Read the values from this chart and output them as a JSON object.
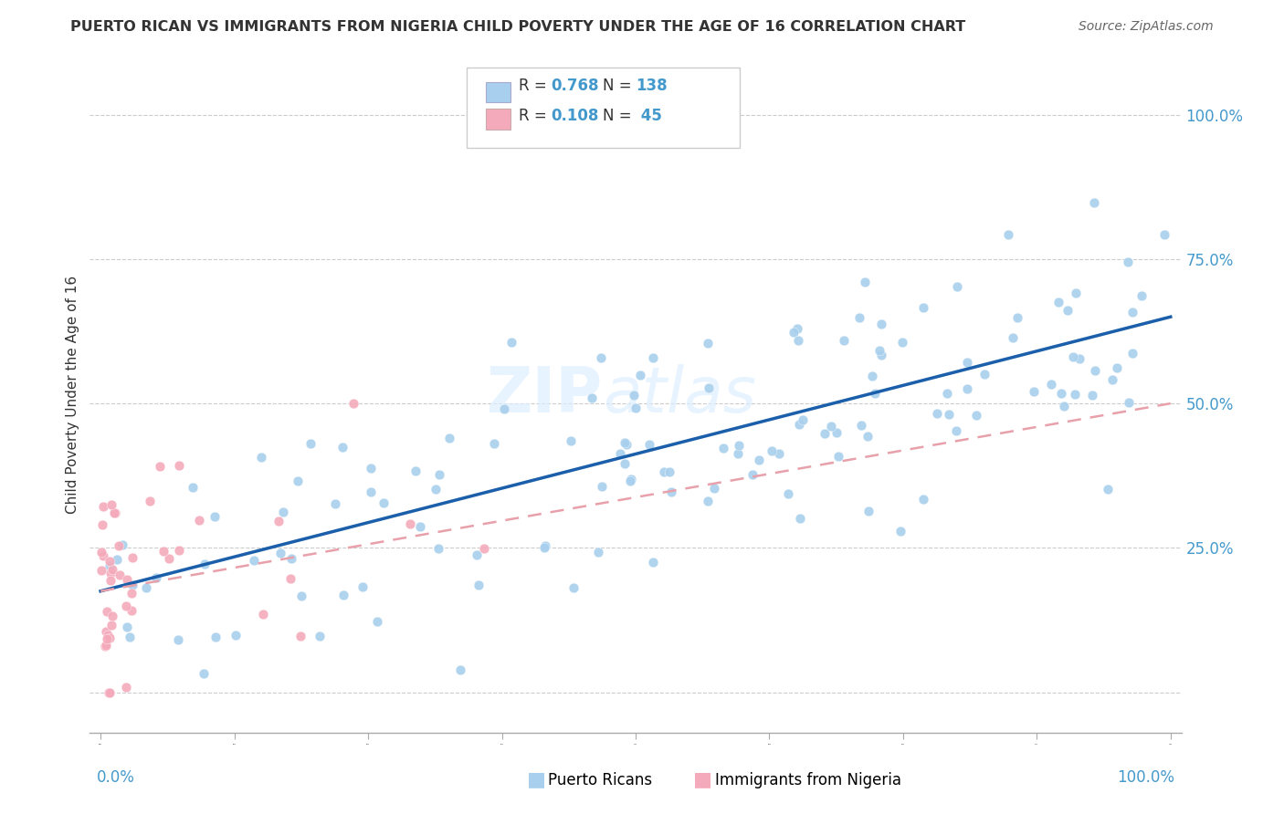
{
  "title": "PUERTO RICAN VS IMMIGRANTS FROM NIGERIA CHILD POVERTY UNDER THE AGE OF 16 CORRELATION CHART",
  "source": "Source: ZipAtlas.com",
  "ylabel": "Child Poverty Under the Age of 16",
  "watermark_text": "ZIPatlas",
  "blue_scatter_color": "#A8CFED",
  "pink_scatter_color": "#F4AABB",
  "line_blue_color": "#1B5FAA",
  "line_pink_color": "#E8A0AA",
  "title_color": "#333333",
  "source_color": "#666666",
  "axis_label_color": "#4499CC",
  "ylabel_color": "#333333",
  "background_color": "#FFFFFF",
  "grid_color": "#CCCCCC",
  "legend_text_color": "#333333",
  "legend_value_color": "#4499CC",
  "pr_R": 0.768,
  "pr_N": 138,
  "ng_R": 0.108,
  "ng_N": 45,
  "xmin": 0.0,
  "xmax": 1.0,
  "ymin": -0.07,
  "ymax": 1.1,
  "pr_line_x0": 0.0,
  "pr_line_y0": 0.175,
  "pr_line_x1": 1.0,
  "pr_line_y1": 0.65,
  "ng_line_x0": 0.0,
  "ng_line_y0": 0.175,
  "ng_line_x1": 1.0,
  "ng_line_y1": 0.5,
  "ytick_positions": [
    0.0,
    0.25,
    0.5,
    0.75,
    1.0
  ],
  "ytick_labels": [
    "",
    "25.0%",
    "50.0%",
    "75.0%",
    "100.0%"
  ]
}
